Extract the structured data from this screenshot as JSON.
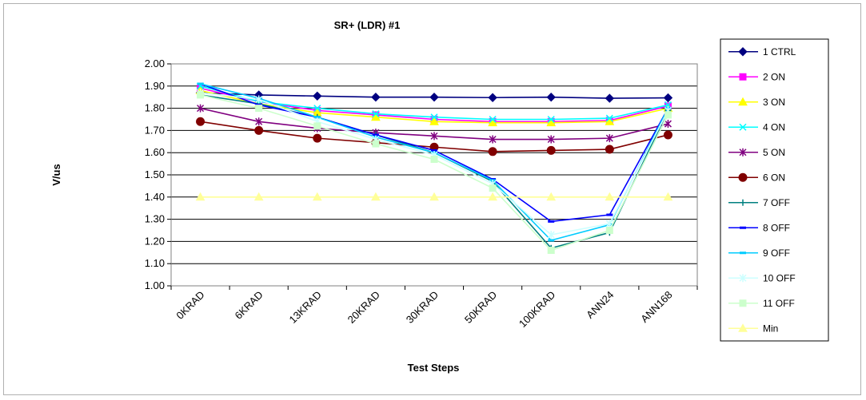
{
  "chart_data": {
    "type": "line",
    "title": "SR+ (LDR) #1",
    "xlabel": "Test Steps",
    "ylabel": "V/us",
    "categories": [
      "0KRAD",
      "6KRAD",
      "13KRAD",
      "20KRAD",
      "30KRAD",
      "50KRAD",
      "100KRAD",
      "ANN24",
      "ANN168"
    ],
    "ylim": [
      1.0,
      2.0
    ],
    "yticks": [
      "1.00",
      "1.10",
      "1.20",
      "1.30",
      "1.40",
      "1.50",
      "1.60",
      "1.70",
      "1.80",
      "1.90",
      "2.00"
    ],
    "grid": "horizontal",
    "legend_position": "right",
    "series": [
      {
        "name": "1 CTRL",
        "color": "#000080",
        "marker": "diamond",
        "values": [
          1.87,
          1.86,
          1.855,
          1.85,
          1.85,
          1.848,
          1.85,
          1.845,
          1.847
        ]
      },
      {
        "name": "2 ON",
        "color": "#ff00ff",
        "marker": "square",
        "values": [
          1.89,
          1.83,
          1.79,
          1.77,
          1.75,
          1.74,
          1.74,
          1.745,
          1.81
        ]
      },
      {
        "name": "3 ON",
        "color": "#ffff00",
        "marker": "triangle",
        "values": [
          1.88,
          1.82,
          1.78,
          1.76,
          1.74,
          1.735,
          1.735,
          1.74,
          1.8
        ]
      },
      {
        "name": "4 ON",
        "color": "#00ffff",
        "marker": "x",
        "values": [
          1.9,
          1.83,
          1.8,
          1.775,
          1.76,
          1.75,
          1.75,
          1.755,
          1.815
        ]
      },
      {
        "name": "5 ON",
        "color": "#800080",
        "marker": "star",
        "values": [
          1.8,
          1.74,
          1.71,
          1.69,
          1.675,
          1.66,
          1.66,
          1.665,
          1.73
        ]
      },
      {
        "name": "6 ON",
        "color": "#800000",
        "marker": "circle",
        "values": [
          1.74,
          1.7,
          1.665,
          1.645,
          1.625,
          1.605,
          1.61,
          1.615,
          1.68
        ]
      },
      {
        "name": "7 OFF",
        "color": "#008080",
        "marker": "plus",
        "values": [
          1.86,
          1.82,
          1.76,
          1.68,
          1.6,
          1.47,
          1.17,
          1.24,
          1.79
        ]
      },
      {
        "name": "8 OFF",
        "color": "#0000ff",
        "marker": "dash",
        "values": [
          1.91,
          1.815,
          1.76,
          1.68,
          1.61,
          1.48,
          1.29,
          1.32,
          1.8
        ]
      },
      {
        "name": "9 OFF",
        "color": "#00ccff",
        "marker": "dash",
        "values": [
          1.91,
          1.845,
          1.76,
          1.67,
          1.6,
          1.475,
          1.205,
          1.275,
          1.8
        ]
      },
      {
        "name": "10 OFF",
        "color": "#ccffff",
        "marker": "star",
        "values": [
          1.87,
          1.84,
          1.74,
          1.66,
          1.59,
          1.46,
          1.23,
          1.28,
          1.79
        ]
      },
      {
        "name": "11 OFF",
        "color": "#ccffcc",
        "marker": "square",
        "values": [
          1.86,
          1.8,
          1.72,
          1.64,
          1.57,
          1.44,
          1.16,
          1.25,
          1.77
        ]
      },
      {
        "name": "Min",
        "color": "#ffff99",
        "marker": "triangle",
        "values": [
          1.4,
          1.4,
          1.4,
          1.4,
          1.4,
          1.4,
          1.4,
          1.4,
          1.4
        ]
      }
    ]
  }
}
